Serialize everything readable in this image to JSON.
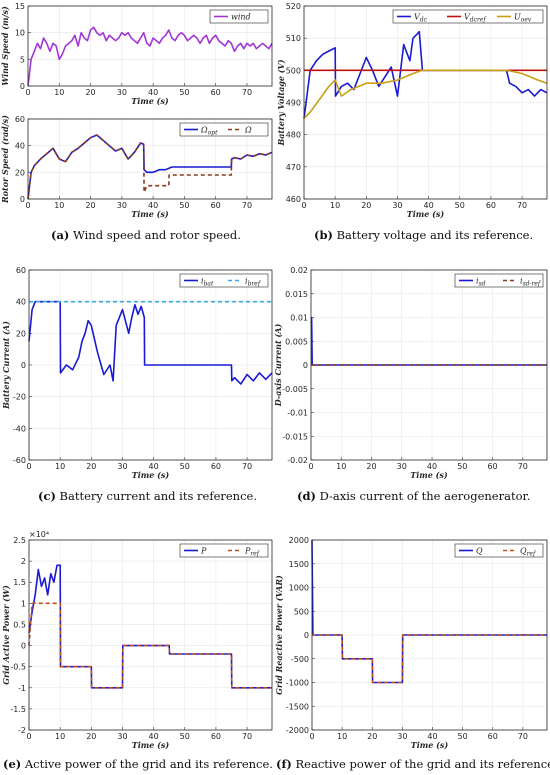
{
  "captions": [
    {
      "label": "(a)",
      "text": " Wind speed and rotor speed."
    },
    {
      "label": "(b)",
      "text": " Battery voltage and its reference."
    },
    {
      "label": "(c)",
      "text": " Battery current and its reference."
    },
    {
      "label": "(d)",
      "text": " D-axis current of the aerogenerator."
    },
    {
      "label": "(e)",
      "text": " Active power of the grid and its reference."
    },
    {
      "label": "(f)",
      "text": " Reactive power of the grid and its reference."
    }
  ],
  "chart_data": [
    {
      "id": "a1",
      "type": "line",
      "xlabel": "Time (s)",
      "ylabel": "Wind Speed (m/s)",
      "xlim": [
        0,
        78
      ],
      "ylim": [
        0,
        15
      ],
      "xticks": [
        "0",
        "10",
        "20",
        "30",
        "40",
        "50",
        "60",
        "70"
      ],
      "yticks": [
        "0",
        "5",
        "10",
        "15"
      ],
      "grid": true,
      "legend": "top-right",
      "series": [
        {
          "name": "wind",
          "color": "#a235d6",
          "x": [
            0,
            1,
            2,
            3,
            4,
            5,
            6,
            7,
            8,
            9,
            10,
            11,
            12,
            13,
            14,
            15,
            16,
            17,
            18,
            19,
            20,
            21,
            22,
            23,
            24,
            25,
            26,
            27,
            28,
            29,
            30,
            31,
            32,
            33,
            34,
            35,
            36,
            37,
            38,
            39,
            40,
            41,
            42,
            43,
            44,
            45,
            46,
            47,
            48,
            49,
            50,
            51,
            52,
            53,
            54,
            55,
            56,
            57,
            58,
            59,
            60,
            61,
            62,
            63,
            64,
            65,
            66,
            67,
            68,
            69,
            70,
            71,
            72,
            73,
            74,
            75,
            76,
            77,
            78
          ],
          "y": [
            0,
            5,
            6.5,
            8,
            7,
            9,
            8,
            6.5,
            8,
            7.5,
            5,
            6,
            7.5,
            8,
            8.5,
            9.5,
            7.5,
            10,
            9,
            8.5,
            10.5,
            11,
            10,
            9.5,
            10,
            8.5,
            9.5,
            9,
            8.5,
            9,
            10,
            9.5,
            10,
            9,
            8.5,
            8,
            9,
            10,
            8,
            7.5,
            9,
            8.5,
            8,
            9,
            9.5,
            10.5,
            9,
            8.5,
            9.5,
            10,
            9.5,
            8.5,
            9,
            9.5,
            9,
            8,
            9,
            9.5,
            8,
            9,
            9.5,
            8.5,
            8,
            7.5,
            8.5,
            8,
            6.5,
            7.5,
            8,
            7,
            8,
            7.5,
            8,
            7,
            7.5,
            8,
            7.5,
            7,
            8
          ]
        }
      ]
    },
    {
      "id": "a2",
      "type": "line",
      "xlabel": "Time (s)",
      "ylabel": "Rotor Speed (rad/s)",
      "xlim": [
        0,
        78
      ],
      "ylim": [
        0,
        60
      ],
      "xticks": [
        "0",
        "10",
        "20",
        "30",
        "40",
        "50",
        "60",
        "70"
      ],
      "yticks": [
        "0",
        "20",
        "40",
        "60"
      ],
      "grid": true,
      "legend": "top-right",
      "series": [
        {
          "name": "Ω_opt",
          "color": "#1a1ad4",
          "x": [
            0,
            1,
            2,
            4,
            6,
            8,
            10,
            12,
            14,
            16,
            18,
            20,
            22,
            24,
            26,
            28,
            30,
            32,
            34,
            36,
            37,
            37.1,
            38,
            40,
            42,
            44,
            46,
            48,
            50,
            52,
            54,
            56,
            58,
            60,
            62,
            64,
            65,
            65.1,
            66,
            68,
            70,
            72,
            74,
            76,
            78
          ],
          "y": [
            0,
            20,
            25,
            30,
            34,
            38,
            30,
            28,
            35,
            38,
            42,
            46,
            48,
            44,
            40,
            36,
            38,
            30,
            35,
            42,
            41,
            22,
            20,
            20,
            22,
            22,
            24,
            24,
            24,
            24,
            24,
            24,
            24,
            24,
            24,
            24,
            24,
            30,
            31,
            30,
            33,
            32,
            34,
            33,
            35
          ]
        },
        {
          "name": "Ω",
          "color": "#8a3a1a",
          "dash": true,
          "x": [
            0,
            1,
            2,
            4,
            6,
            8,
            10,
            12,
            14,
            16,
            18,
            20,
            22,
            24,
            26,
            28,
            30,
            32,
            34,
            36,
            37,
            37.1,
            38,
            40,
            45,
            45.1,
            50,
            55,
            60,
            65,
            65.1,
            66,
            68,
            70,
            72,
            74,
            76,
            78
          ],
          "y": [
            0,
            20,
            25,
            30,
            34,
            38,
            30,
            28,
            35,
            38,
            42,
            46,
            48,
            44,
            40,
            36,
            38,
            30,
            35,
            42,
            41,
            5,
            10,
            10,
            10,
            18,
            18,
            18,
            18,
            18,
            30,
            31,
            30,
            33,
            32,
            34,
            33,
            35
          ]
        }
      ]
    },
    {
      "id": "b",
      "type": "line",
      "xlabel": "Time (s)",
      "ylabel": "Battery Voltage (V)",
      "xlim": [
        0,
        78
      ],
      "ylim": [
        460,
        520
      ],
      "xticks": [
        "0",
        "10",
        "20",
        "30",
        "40",
        "50",
        "60",
        "70"
      ],
      "yticks": [
        "460",
        "470",
        "480",
        "490",
        "500",
        "510",
        "520"
      ],
      "grid": true,
      "legend": "top-right",
      "series": [
        {
          "name": "V_dc",
          "color": "#1a1ad4",
          "x": [
            0,
            2,
            4,
            6,
            8,
            10,
            10.1,
            12,
            14,
            16,
            18,
            20,
            22,
            24,
            26,
            28,
            30,
            31,
            32,
            34,
            35,
            36,
            37,
            38,
            40,
            50,
            60,
            65,
            66,
            68,
            70,
            72,
            74,
            76,
            78
          ],
          "y": [
            485,
            500,
            503,
            505,
            506,
            507,
            492,
            495,
            496,
            494,
            499,
            504,
            500,
            495,
            498,
            501,
            492,
            500,
            508,
            503,
            510,
            511,
            512,
            500,
            500,
            500,
            500,
            500,
            496,
            495,
            493,
            494,
            492,
            494,
            493
          ]
        },
        {
          "name": "V_dcref",
          "color": "#c01010",
          "x": [
            0,
            78
          ],
          "y": [
            500,
            500
          ]
        },
        {
          "name": "U_oev",
          "color": "#c8a010",
          "x": [
            0,
            2,
            5,
            8,
            10,
            12,
            15,
            20,
            25,
            30,
            35,
            38,
            40,
            50,
            60,
            65,
            70,
            75,
            78
          ],
          "y": [
            485,
            487,
            491,
            495,
            497,
            492,
            494,
            496,
            496,
            497,
            499,
            500,
            500,
            500,
            500,
            500,
            499,
            497,
            496
          ]
        }
      ]
    },
    {
      "id": "c",
      "type": "line",
      "xlabel": "Time (s)",
      "ylabel": "Battery Current (A)",
      "xlim": [
        0,
        78
      ],
      "ylim": [
        -60,
        60
      ],
      "xticks": [
        "0",
        "10",
        "20",
        "30",
        "40",
        "50",
        "60",
        "70"
      ],
      "yticks": [
        "-60",
        "-40",
        "-20",
        "0",
        "20",
        "40",
        "60"
      ],
      "grid": true,
      "legend": "top-right",
      "series": [
        {
          "name": "i_bat",
          "color": "#1a1ad4",
          "x": [
            0,
            1,
            2,
            3,
            10,
            10.1,
            12,
            14,
            16,
            17,
            18,
            19,
            20,
            22,
            24,
            26,
            27,
            28,
            30,
            32,
            33,
            34,
            35,
            36,
            37,
            37.1,
            40,
            50,
            60,
            65,
            65.1,
            66,
            68,
            70,
            72,
            74,
            76,
            78
          ],
          "y": [
            15,
            35,
            40,
            40,
            40,
            -5,
            0,
            -3,
            5,
            15,
            20,
            28,
            25,
            8,
            -6,
            0,
            -10,
            25,
            35,
            20,
            30,
            38,
            32,
            37,
            30,
            0,
            0,
            0,
            0,
            0,
            -10,
            -8,
            -12,
            -6,
            -10,
            -5,
            -9,
            -5
          ]
        },
        {
          "name": "i_bref",
          "color": "#3aa8e0",
          "dash": true,
          "x": [
            0,
            78
          ],
          "y": [
            40,
            40
          ]
        }
      ]
    },
    {
      "id": "d",
      "type": "line",
      "xlabel": "Time (s)",
      "ylabel": "D-axis Current (A)",
      "xlim": [
        0,
        78
      ],
      "ylim": [
        -0.02,
        0.02
      ],
      "xticks": [
        "0",
        "10",
        "20",
        "30",
        "40",
        "50",
        "60",
        "70"
      ],
      "yticks": [
        "-0.02",
        "-0.015",
        "-0.01",
        "-0.005",
        "0",
        "0.005",
        "0.01",
        "0.015",
        "0.02"
      ],
      "grid": true,
      "legend": "top-right",
      "series": [
        {
          "name": "i_sd",
          "color": "#1a1ad4",
          "x": [
            0,
            0.2,
            0.4,
            78
          ],
          "y": [
            0.01,
            0.01,
            0,
            0
          ]
        },
        {
          "name": "i_sd-ref",
          "color": "#8a3a1a",
          "dash": true,
          "x": [
            0,
            78
          ],
          "y": [
            0,
            0
          ]
        }
      ]
    },
    {
      "id": "e",
      "type": "line",
      "xlabel": "Time (s)",
      "ylabel": "Grid Active Power (W)",
      "xlim": [
        0,
        78
      ],
      "ylim": [
        -20000,
        25000
      ],
      "xticks": [
        "0",
        "10",
        "20",
        "30",
        "40",
        "50",
        "60",
        "70"
      ],
      "yticks": [
        "-2",
        "-1.5",
        "-1",
        "-0.5",
        "0",
        "0.5",
        "1",
        "1.5",
        "2",
        "2.5"
      ],
      "multiplier": "×10⁴",
      "grid": true,
      "legend": "top-right",
      "series": [
        {
          "name": "P",
          "color": "#1a1ad4",
          "x": [
            0,
            1,
            2,
            3,
            4,
            5,
            6,
            7,
            8,
            9,
            10,
            10.1,
            20,
            20.1,
            30,
            30.1,
            45,
            45.1,
            65,
            65.1,
            78
          ],
          "y": [
            3000,
            8000,
            12000,
            18000,
            14000,
            16000,
            12000,
            17000,
            15000,
            19000,
            19000,
            -5000,
            -5000,
            -10000,
            -10000,
            0,
            0,
            -2000,
            -2000,
            -10000,
            -10000
          ]
        },
        {
          "name": "P_ref",
          "color": "#c05020",
          "dash": true,
          "x": [
            0,
            1,
            2,
            10,
            10.1,
            20,
            20.1,
            30,
            30.1,
            45,
            45.1,
            65,
            65.1,
            78
          ],
          "y": [
            0,
            10000,
            10000,
            10000,
            -5000,
            -5000,
            -10000,
            -10000,
            0,
            0,
            -2000,
            -2000,
            -10000,
            -10000
          ]
        }
      ]
    },
    {
      "id": "f",
      "type": "line",
      "xlabel": "Time (s)",
      "ylabel": "Grid Reactive Power (VAR)",
      "xlim": [
        0,
        78
      ],
      "ylim": [
        -2000,
        2000
      ],
      "xticks": [
        "0",
        "10",
        "20",
        "30",
        "40",
        "50",
        "60",
        "70"
      ],
      "yticks": [
        "-2000",
        "-1500",
        "-1000",
        "-500",
        "0",
        "500",
        "1000",
        "1500",
        "2000"
      ],
      "grid": true,
      "legend": "top-right",
      "series": [
        {
          "name": "Q",
          "color": "#1a1ad4",
          "x": [
            0,
            0.3,
            0.5,
            10,
            10.1,
            20,
            20.1,
            30,
            30.1,
            78
          ],
          "y": [
            2000,
            0,
            0,
            0,
            -500,
            -500,
            -1000,
            -1000,
            0,
            0
          ]
        },
        {
          "name": "Q_ref",
          "color": "#c05020",
          "dash": true,
          "x": [
            0,
            10,
            10.1,
            20,
            20.1,
            30,
            30.1,
            78
          ],
          "y": [
            0,
            0,
            -500,
            -500,
            -1000,
            -1000,
            0,
            0
          ]
        }
      ]
    }
  ]
}
